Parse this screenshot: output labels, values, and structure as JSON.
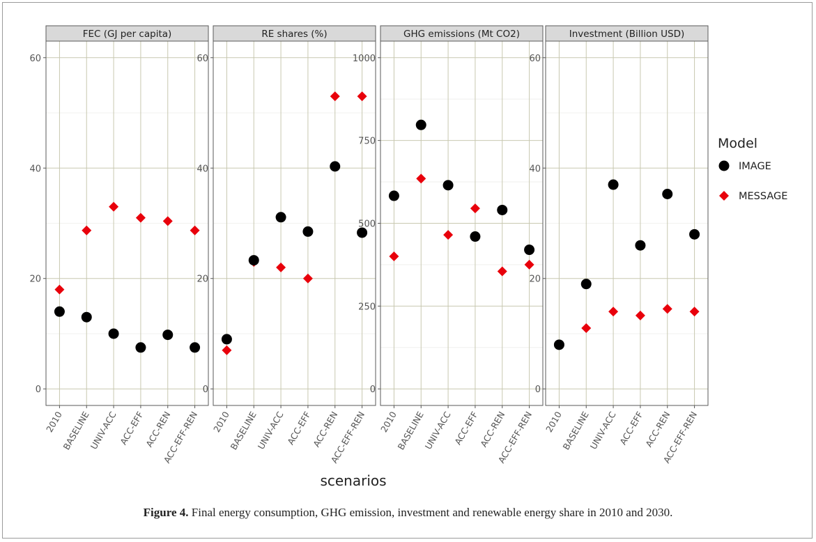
{
  "chart_data": {
    "type": "scatter",
    "categories": [
      "2010",
      "BASELINE",
      "UNIV-ACC",
      "ACC-EFF",
      "ACC-REN",
      "ACC-EFF-REN"
    ],
    "xlabel": "scenarios",
    "legend": {
      "title": "Model",
      "placement": "right",
      "entries": [
        {
          "name": "IMAGE",
          "color": "#000000",
          "shape": "circle"
        },
        {
          "name": "MESSAGE",
          "color": "#e8000b",
          "shape": "diamond"
        }
      ]
    },
    "grid": true,
    "panels": [
      {
        "title": "FEC (GJ per capita)",
        "ylim": [
          -3,
          63
        ],
        "yticks": [
          0,
          20,
          40,
          60
        ],
        "series": [
          {
            "name": "IMAGE",
            "values": [
              14,
              13,
              10,
              7.5,
              9.8,
              7.5
            ]
          },
          {
            "name": "MESSAGE",
            "values": [
              18,
              28.7,
              33,
              31,
              30.4,
              28.7
            ]
          }
        ]
      },
      {
        "title": "RE shares (%)",
        "ylim": [
          -3,
          63
        ],
        "yticks": [
          0,
          20,
          40,
          60
        ],
        "series": [
          {
            "name": "IMAGE",
            "values": [
              9,
              23.3,
              31.1,
              28.5,
              40.3,
              28.3
            ]
          },
          {
            "name": "MESSAGE",
            "values": [
              7,
              23,
              22,
              20,
              53,
              53
            ]
          }
        ]
      },
      {
        "title": "GHG emissions (Mt CO2)",
        "ylim": [
          -50,
          1050
        ],
        "yticks": [
          0,
          250,
          500,
          750,
          1000
        ],
        "series": [
          {
            "name": "IMAGE",
            "values": [
              583,
              797,
              615,
              460,
              540,
              420
            ]
          },
          {
            "name": "MESSAGE",
            "values": [
              400,
              635,
              465,
              545,
              355,
              375
            ]
          }
        ]
      },
      {
        "title": "Investment (Billion USD)",
        "ylim": [
          -3,
          63
        ],
        "yticks": [
          0,
          20,
          40,
          60
        ],
        "series": [
          {
            "name": "IMAGE",
            "values": [
              8,
              19,
              37,
              26,
              35.3,
              28
            ]
          },
          {
            "name": "MESSAGE",
            "values": [
              8,
              11,
              14,
              13.3,
              14.5,
              14
            ]
          }
        ]
      }
    ]
  },
  "caption": {
    "label": "Figure 4.",
    "text": " Final energy consumption, GHG emission, investment and renewable energy share in 2010 and 2030."
  }
}
